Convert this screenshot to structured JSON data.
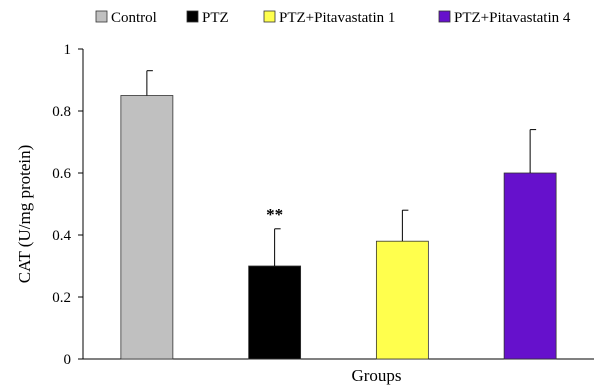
{
  "chart_data": {
    "type": "bar",
    "categories": [
      "Control",
      "PTZ",
      "PTZ+Pitavastatin 1",
      "PTZ+Pitavastatin 4"
    ],
    "series": [
      {
        "values": [
          0.85,
          0.3,
          0.38,
          0.6
        ],
        "error": [
          0.08,
          0.12,
          0.1,
          0.14
        ]
      }
    ],
    "colors": [
      "#c0c0c0",
      "#000000",
      "#ffff4d",
      "#6611cc"
    ],
    "annotations": [
      "",
      "**",
      "",
      ""
    ],
    "legend": [
      "Control",
      "PTZ",
      "PTZ+Pitavastatin 1",
      "PTZ+Pitavastatin 4"
    ],
    "legend_position": "top",
    "xlabel": "Groups",
    "ylabel": "CAT (U/mg protein)",
    "ylim": [
      0,
      1
    ],
    "yticks": [
      "0",
      "0.2",
      "0.4",
      "0.6",
      "0.8",
      "1"
    ],
    "yticks_values": [
      0,
      0.2,
      0.4,
      0.6,
      0.8,
      1
    ],
    "grid": false
  }
}
